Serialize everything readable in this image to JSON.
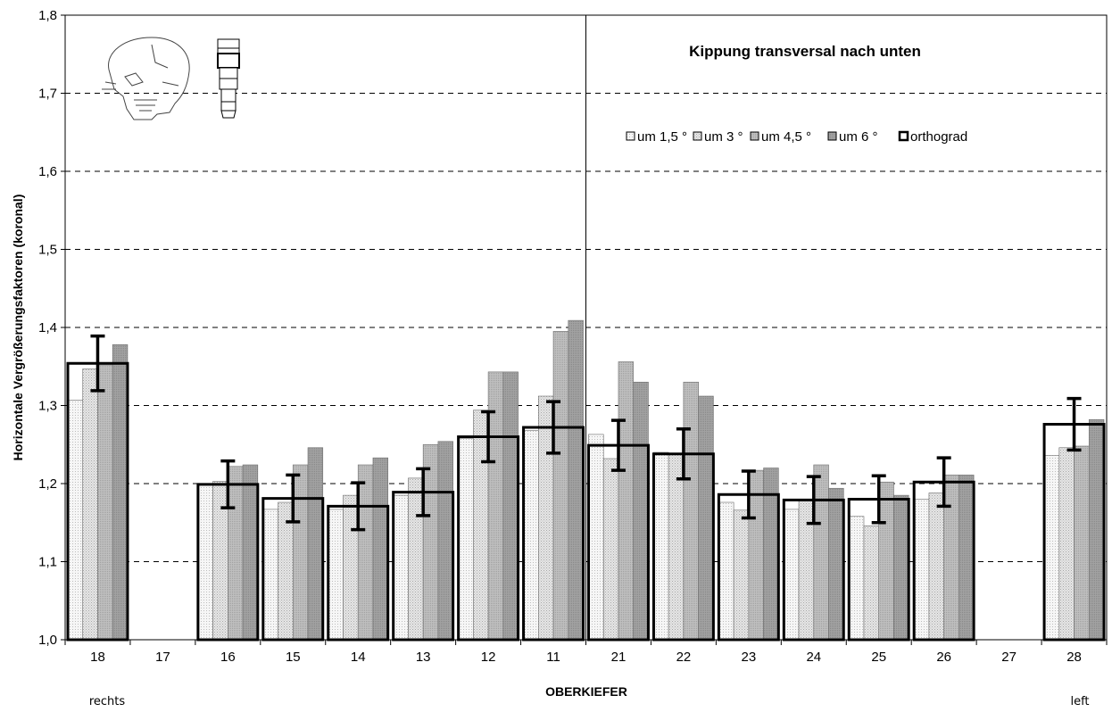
{
  "chart_data": {
    "type": "bar",
    "title": "Kippung transversal nach unten",
    "xlabel": "OBERKIEFER",
    "ylabel": "Horizontale Vergrößerungsfaktoren (koronal)",
    "ylim": [
      1.0,
      1.8
    ],
    "yticks": [
      "1,0",
      "1,1",
      "1,2",
      "1,3",
      "1,4",
      "1,5",
      "1,6",
      "1,7",
      "1,8"
    ],
    "categories": [
      "18",
      "17",
      "16",
      "15",
      "14",
      "13",
      "12",
      "11",
      "21",
      "22",
      "23",
      "24",
      "25",
      "26",
      "27",
      "28"
    ],
    "side_labels": {
      "left": "rechts",
      "right": "left"
    },
    "series": [
      {
        "name": "um 1,5 °",
        "pattern": "fine-dots",
        "values": [
          1.307,
          null,
          1.198,
          1.167,
          1.167,
          1.185,
          1.258,
          1.268,
          1.263,
          1.24,
          1.176,
          1.167,
          1.158,
          1.18,
          null,
          1.236
        ]
      },
      {
        "name": "um 3 °",
        "pattern": "dots",
        "values": [
          1.347,
          null,
          1.203,
          1.176,
          1.185,
          1.207,
          1.294,
          1.312,
          1.232,
          1.239,
          1.166,
          1.178,
          1.146,
          1.188,
          null,
          1.246
        ]
      },
      {
        "name": "um 4,5 °",
        "pattern": "medium",
        "values": [
          1.352,
          null,
          1.222,
          1.224,
          1.224,
          1.25,
          1.343,
          1.395,
          1.356,
          1.33,
          1.217,
          1.224,
          1.202,
          1.211,
          null,
          1.248
        ]
      },
      {
        "name": "um 6 °",
        "pattern": "dark",
        "values": [
          1.378,
          null,
          1.224,
          1.246,
          1.233,
          1.254,
          1.343,
          1.409,
          1.33,
          1.312,
          1.22,
          1.194,
          1.185,
          1.211,
          null,
          1.282
        ]
      }
    ],
    "reference": {
      "name": "orthograd",
      "values": [
        1.354,
        null,
        1.199,
        1.181,
        1.171,
        1.189,
        1.26,
        1.272,
        1.249,
        1.238,
        1.186,
        1.179,
        1.18,
        1.202,
        null,
        1.276
      ],
      "error": [
        0.035,
        null,
        0.03,
        0.03,
        0.03,
        0.03,
        0.032,
        0.033,
        0.032,
        0.032,
        0.03,
        0.03,
        0.03,
        0.031,
        null,
        0.033
      ]
    },
    "divider_between": [
      "11",
      "21"
    ],
    "grid": "dashed-horizontal",
    "legend_position": "top-right"
  },
  "colors": {
    "fine-dots": "#efefef",
    "dots": "#dcdcdc",
    "medium": "#b8b8b8",
    "dark": "#9a9a9a",
    "outline": "#000000",
    "grid": "#000000"
  },
  "icons": [
    "skull-icon",
    "implant-icon"
  ]
}
